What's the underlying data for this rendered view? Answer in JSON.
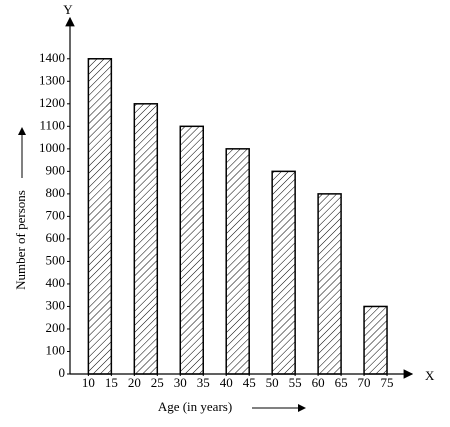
{
  "chart_data": {
    "type": "bar",
    "x_label": "Age (in years)",
    "y_label": "Number of persons",
    "x_axis_name": "X",
    "y_axis_name": "Y",
    "x": [
      [
        10,
        15
      ],
      [
        20,
        25
      ],
      [
        30,
        35
      ],
      [
        40,
        45
      ],
      [
        50,
        55
      ],
      [
        60,
        65
      ],
      [
        70,
        75
      ]
    ],
    "values": [
      1400,
      1200,
      1100,
      1000,
      900,
      800,
      300
    ],
    "color": "#000000",
    "xlim": [
      6,
      80
    ],
    "xticks": [
      10,
      15,
      20,
      25,
      30,
      35,
      40,
      45,
      50,
      55,
      60,
      65,
      70,
      75
    ],
    "ylim": [
      0,
      1550
    ],
    "yticks": [
      0,
      100,
      200,
      300,
      400,
      500,
      600,
      700,
      800,
      900,
      1000,
      1100,
      1200,
      1300,
      1400
    ],
    "grid": false
  }
}
